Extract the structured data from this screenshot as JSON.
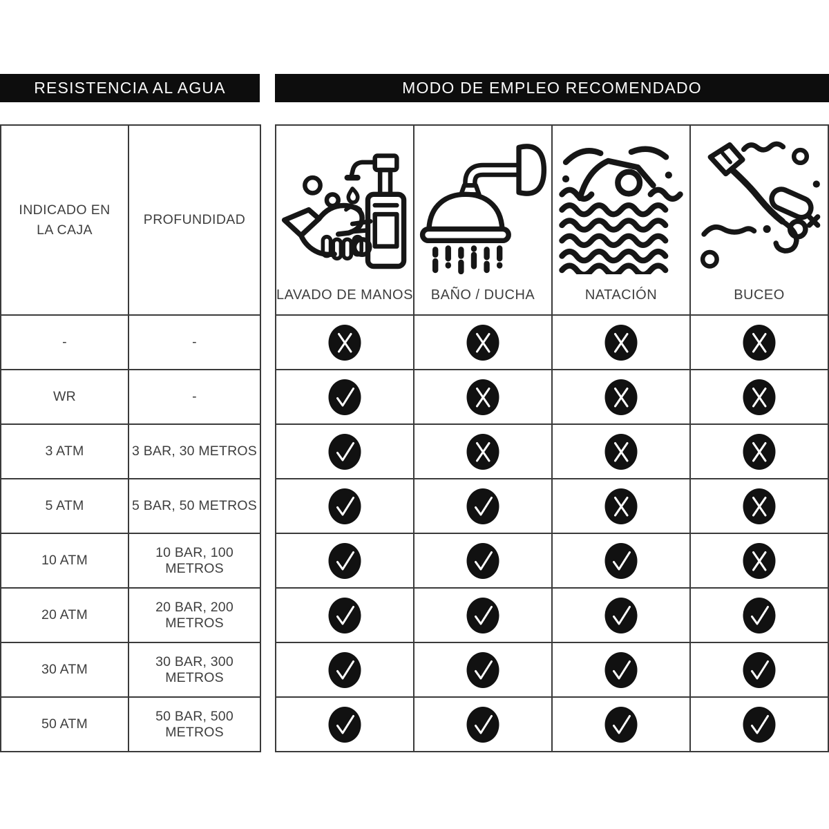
{
  "headers": {
    "left": "RESISTENCIA AL AGUA",
    "right": "MODO DE EMPLEO RECOMENDADO"
  },
  "left_table": {
    "columns": [
      "INDICADO EN LA CAJA",
      "PROFUNDIDAD"
    ],
    "rows": [
      {
        "caja": "-",
        "profundidad": "-"
      },
      {
        "caja": "WR",
        "profundidad": "-"
      },
      {
        "caja": "3 ATM",
        "profundidad": "3 BAR, 30 METROS"
      },
      {
        "caja": "5 ATM",
        "profundidad": "5 BAR, 50 METROS"
      },
      {
        "caja": "10 ATM",
        "profundidad": "10 BAR, 100 METROS"
      },
      {
        "caja": "20 ATM",
        "profundidad": "20 BAR, 200 METROS"
      },
      {
        "caja": "30 ATM",
        "profundidad": "30 BAR, 300 METROS"
      },
      {
        "caja": "50 ATM",
        "profundidad": "50 BAR, 500 METROS"
      }
    ]
  },
  "right_table": {
    "activities": [
      {
        "label": "LAVADO DE MANOS",
        "icon": "hand-washing-icon"
      },
      {
        "label": "BAÑO / DUCHA",
        "icon": "shower-icon"
      },
      {
        "label": "NATACIÓN",
        "icon": "swimming-icon"
      },
      {
        "label": "BUCEO",
        "icon": "diving-icon"
      }
    ],
    "mark_glyphs": {
      "yes": "check",
      "no": "cross"
    },
    "marks": [
      [
        "no",
        "no",
        "no",
        "no"
      ],
      [
        "yes",
        "no",
        "no",
        "no"
      ],
      [
        "yes",
        "no",
        "no",
        "no"
      ],
      [
        "yes",
        "yes",
        "no",
        "no"
      ],
      [
        "yes",
        "yes",
        "yes",
        "no"
      ],
      [
        "yes",
        "yes",
        "yes",
        "yes"
      ],
      [
        "yes",
        "yes",
        "yes",
        "yes"
      ],
      [
        "yes",
        "yes",
        "yes",
        "yes"
      ]
    ]
  },
  "colors": {
    "header_bar_bg": "#0d0d0d",
    "header_bar_text": "#fbfbfb",
    "border": "#3a3a3a",
    "text": "#3e3e3e",
    "mark_bg": "#111111",
    "mark_glyph": "#ffffff",
    "icon_stroke": "#161616"
  }
}
